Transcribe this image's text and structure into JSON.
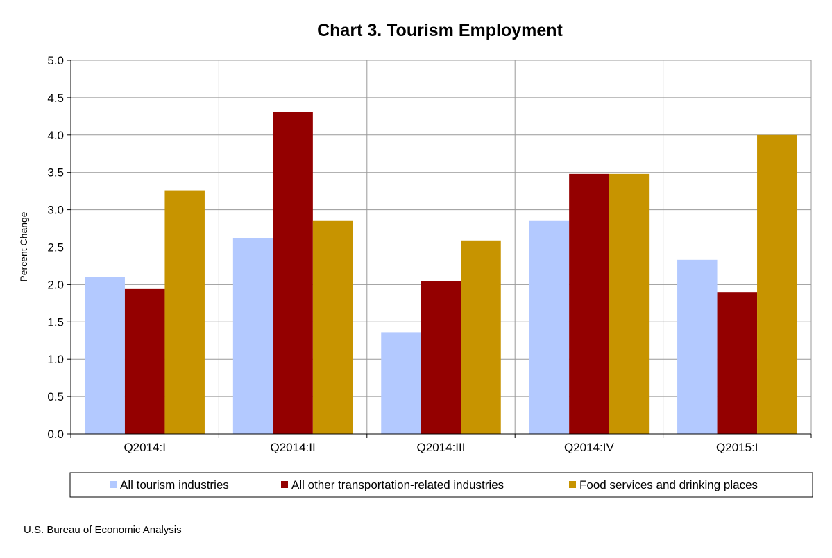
{
  "chart_data": {
    "type": "bar",
    "title": "Chart 3. Tourism Employment",
    "ylabel": "Percent Change",
    "xlabel": "",
    "categories": [
      "Q2014:I",
      "Q2014:II",
      "Q2014:III",
      "Q2014:IV",
      "Q2015:I"
    ],
    "series": [
      {
        "name": "All tourism industries",
        "color": "#b3c9ff",
        "values": [
          2.1,
          2.62,
          1.36,
          2.85,
          2.33
        ]
      },
      {
        "name": "All other transportation-related industries",
        "color": "#940000",
        "values": [
          1.94,
          4.31,
          2.05,
          3.48,
          1.9
        ]
      },
      {
        "name": "Food services and drinking places",
        "color": "#c79400",
        "values": [
          3.26,
          2.85,
          2.59,
          3.48,
          4.0
        ]
      }
    ],
    "ylim": [
      0,
      5.0
    ],
    "yticks": [
      "0.0",
      "0.5",
      "1.0",
      "1.5",
      "2.0",
      "2.5",
      "3.0",
      "3.5",
      "4.0",
      "4.5",
      "5.0"
    ],
    "grid": true,
    "legend_position": "bottom",
    "source": "U.S. Bureau of Economic Analysis"
  }
}
